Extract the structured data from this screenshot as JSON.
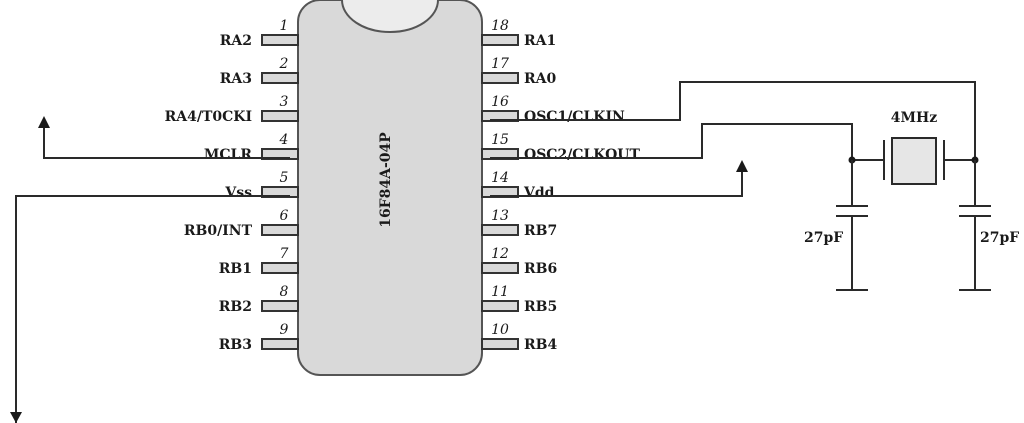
{
  "chip": {
    "part_number": "16F84A-04P",
    "left_pins": [
      {
        "num": "1",
        "label": "RA2"
      },
      {
        "num": "2",
        "label": "RA3"
      },
      {
        "num": "3",
        "label": "RA4/T0CKI"
      },
      {
        "num": "4",
        "label": "MCLR"
      },
      {
        "num": "5",
        "label": "Vss"
      },
      {
        "num": "6",
        "label": "RB0/INT"
      },
      {
        "num": "7",
        "label": "RB1"
      },
      {
        "num": "8",
        "label": "RB2"
      },
      {
        "num": "9",
        "label": "RB3"
      }
    ],
    "right_pins": [
      {
        "num": "18",
        "label": "RA1"
      },
      {
        "num": "17",
        "label": "RA0"
      },
      {
        "num": "16",
        "label": "OSC1/CLKIN"
      },
      {
        "num": "15",
        "label": "OSC2/CLKOUT"
      },
      {
        "num": "14",
        "label": "Vdd"
      },
      {
        "num": "13",
        "label": "RB7"
      },
      {
        "num": "12",
        "label": "RB6"
      },
      {
        "num": "11",
        "label": "RB5"
      },
      {
        "num": "10",
        "label": "RB4"
      }
    ]
  },
  "crystal": {
    "label": "4MHz"
  },
  "capacitors": [
    {
      "label": "27pF"
    },
    {
      "label": "27pF"
    }
  ]
}
